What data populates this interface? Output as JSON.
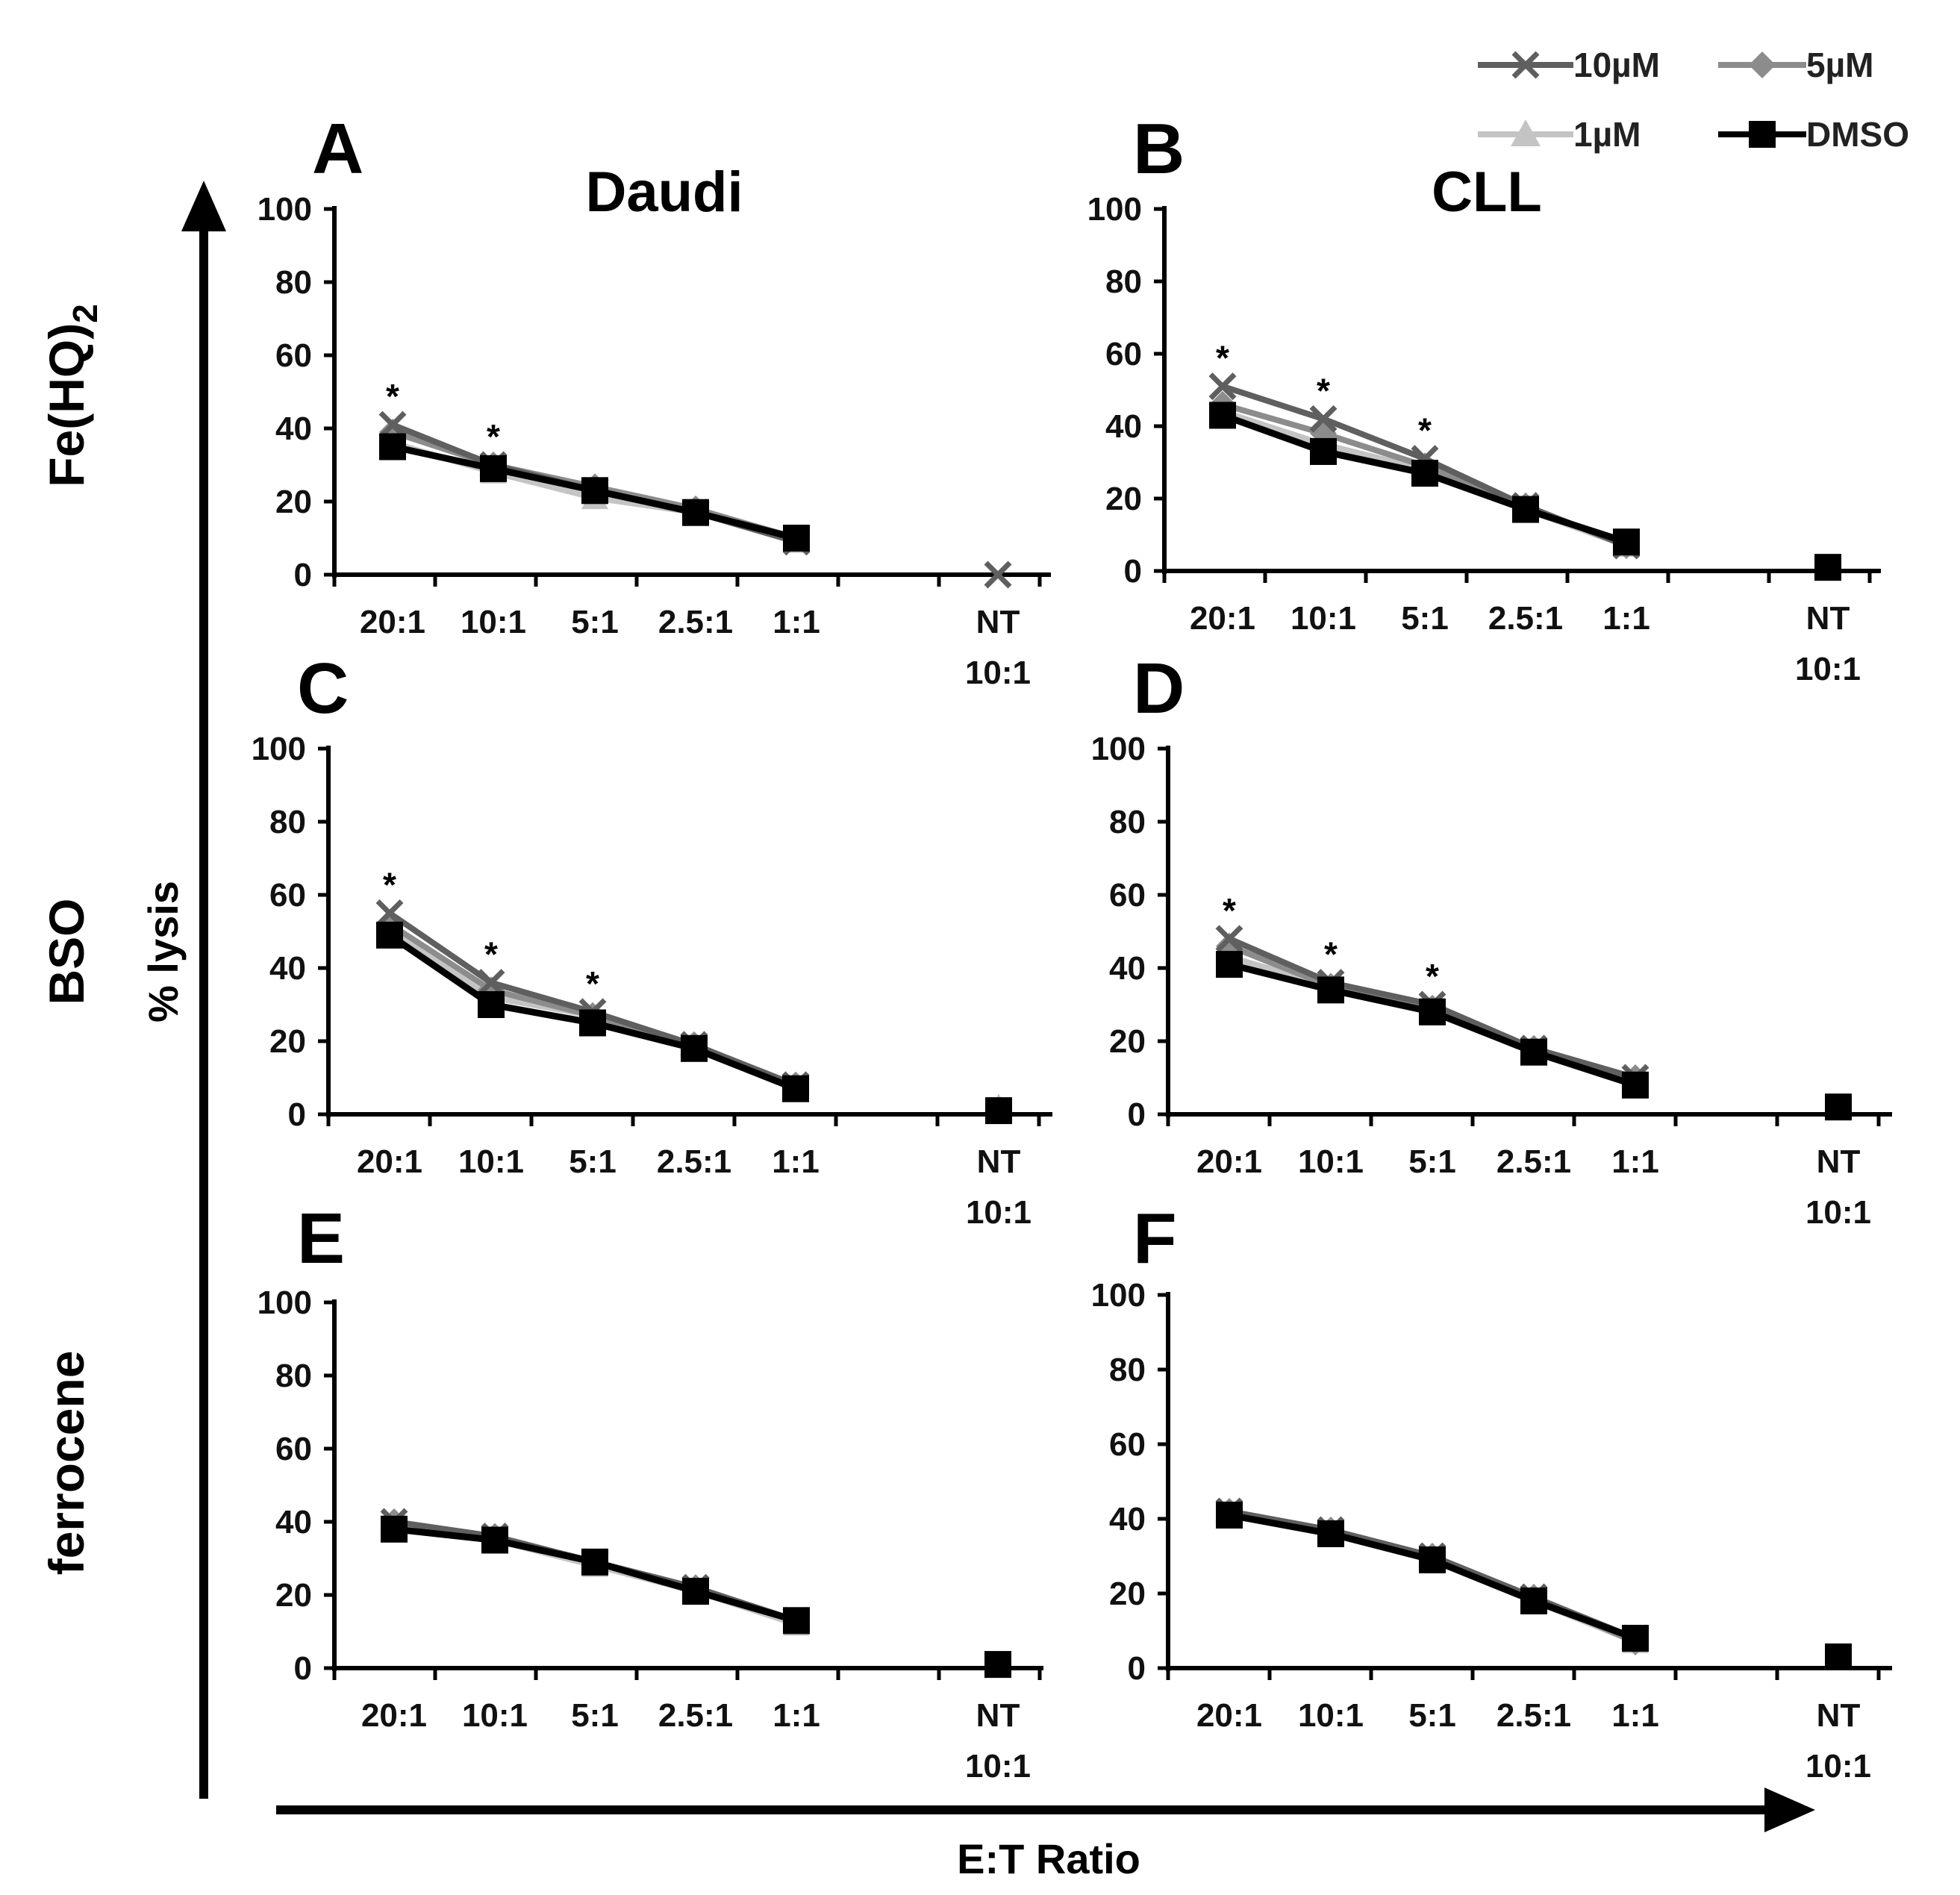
{
  "figure": {
    "y_axis_label": "% lysis",
    "x_axis_label": "E:T Ratio",
    "column_titles": [
      "Daudi",
      "CLL"
    ],
    "row_titles": [
      "Fe(HQ)",
      "BSO",
      "ferrocene"
    ],
    "row_title_subscript": "2"
  },
  "legend": [
    {
      "name": "10µM",
      "color": "#5f5f5f",
      "marker": "x-icon"
    },
    {
      "name": "5µM",
      "color": "#8c8c8c",
      "marker": "diamond-icon"
    },
    {
      "name": "1µM",
      "color": "#c4c4c4",
      "marker": "triangle-icon"
    },
    {
      "name": "DMSO",
      "color": "#000000",
      "marker": "square-icon"
    }
  ],
  "chart_data": [
    {
      "panel": "A",
      "type": "line",
      "cell_line": "Daudi",
      "treatment": "Fe(HQ)2",
      "categories": [
        "20:1",
        "10:1",
        "5:1",
        "2.5:1",
        "1:1",
        "NT 10:1"
      ],
      "ylim": [
        0,
        100
      ],
      "yticks": [
        0,
        20,
        40,
        60,
        80,
        100
      ],
      "series": [
        {
          "name": "10µM",
          "values": [
            41,
            30,
            23,
            17,
            9,
            0
          ]
        },
        {
          "name": "5µM",
          "values": [
            39,
            30,
            24,
            18,
            10,
            null
          ]
        },
        {
          "name": "1µM",
          "values": [
            36,
            28,
            21,
            17,
            9,
            null
          ]
        },
        {
          "name": "DMSO",
          "values": [
            35,
            29,
            23,
            17,
            10,
            null
          ]
        }
      ],
      "significance": [
        "*",
        "*",
        "",
        "",
        "",
        ""
      ]
    },
    {
      "panel": "B",
      "type": "line",
      "cell_line": "CLL",
      "treatment": "Fe(HQ)2",
      "categories": [
        "20:1",
        "10:1",
        "5:1",
        "2.5:1",
        "1:1",
        "NT 10:1"
      ],
      "ylim": [
        0,
        100
      ],
      "yticks": [
        0,
        20,
        40,
        60,
        80,
        100
      ],
      "series": [
        {
          "name": "10µM",
          "values": [
            51,
            42,
            31,
            18,
            7,
            null
          ]
        },
        {
          "name": "5µM",
          "values": [
            46,
            38,
            29,
            18,
            7,
            null
          ]
        },
        {
          "name": "1µM",
          "values": [
            44,
            35,
            28,
            17,
            7,
            null
          ]
        },
        {
          "name": "DMSO",
          "values": [
            43,
            33,
            27,
            17,
            8,
            1
          ]
        }
      ],
      "significance": [
        "*",
        "*",
        "*",
        "",
        "",
        ""
      ]
    },
    {
      "panel": "C",
      "type": "line",
      "cell_line": "Daudi",
      "treatment": "BSO",
      "categories": [
        "20:1",
        "10:1",
        "5:1",
        "2.5:1",
        "1:1",
        "NT 10:1"
      ],
      "ylim": [
        0,
        100
      ],
      "yticks": [
        0,
        20,
        40,
        60,
        80,
        100
      ],
      "series": [
        {
          "name": "10µM",
          "values": [
            55,
            36,
            28,
            19,
            8,
            null
          ]
        },
        {
          "name": "5µM",
          "values": [
            52,
            34,
            27,
            19,
            8,
            null
          ]
        },
        {
          "name": "1µM",
          "values": [
            50,
            32,
            27,
            18,
            8,
            2
          ]
        },
        {
          "name": "DMSO",
          "values": [
            49,
            30,
            25,
            18,
            7,
            1
          ]
        }
      ],
      "significance": [
        "*",
        "*",
        "*",
        "",
        "",
        ""
      ]
    },
    {
      "panel": "D",
      "type": "line",
      "cell_line": "CLL",
      "treatment": "BSO",
      "categories": [
        "20:1",
        "10:1",
        "5:1",
        "2.5:1",
        "1:1",
        "NT 10:1"
      ],
      "ylim": [
        0,
        100
      ],
      "yticks": [
        0,
        20,
        40,
        60,
        80,
        100
      ],
      "series": [
        {
          "name": "10µM",
          "values": [
            48,
            36,
            30,
            18,
            10,
            null
          ]
        },
        {
          "name": "5µM",
          "values": [
            46,
            35,
            29,
            18,
            10,
            null
          ]
        },
        {
          "name": "1µM",
          "values": [
            43,
            35,
            29,
            18,
            10,
            2
          ]
        },
        {
          "name": "DMSO",
          "values": [
            41,
            34,
            28,
            17,
            8,
            2
          ]
        }
      ],
      "significance": [
        "*",
        "*",
        "*",
        "",
        "",
        ""
      ]
    },
    {
      "panel": "E",
      "type": "line",
      "cell_line": "Daudi",
      "treatment": "ferrocene",
      "categories": [
        "20:1",
        "10:1",
        "5:1",
        "2.5:1",
        "1:1",
        "NT 10:1"
      ],
      "ylim": [
        0,
        100
      ],
      "yticks": [
        0,
        20,
        40,
        60,
        80,
        100
      ],
      "series": [
        {
          "name": "10µM",
          "values": [
            40,
            36,
            29,
            22,
            13,
            null
          ]
        },
        {
          "name": "5µM",
          "values": [
            40,
            36,
            29,
            22,
            13,
            null
          ]
        },
        {
          "name": "1µM",
          "values": [
            39,
            35,
            28,
            21,
            12,
            null
          ]
        },
        {
          "name": "DMSO",
          "values": [
            38,
            35,
            29,
            21,
            13,
            1
          ]
        }
      ],
      "significance": [
        "",
        "",
        "",
        "",
        "",
        ""
      ]
    },
    {
      "panel": "F",
      "type": "line",
      "cell_line": "CLL",
      "treatment": "ferrocene",
      "categories": [
        "20:1",
        "10:1",
        "5:1",
        "2.5:1",
        "1:1",
        "NT 10:1"
      ],
      "ylim": [
        0,
        100
      ],
      "yticks": [
        0,
        20,
        40,
        60,
        80,
        100
      ],
      "series": [
        {
          "name": "10µM",
          "values": [
            42,
            37,
            30,
            19,
            8,
            null
          ]
        },
        {
          "name": "5µM",
          "values": [
            42,
            37,
            30,
            19,
            7,
            null
          ]
        },
        {
          "name": "1µM",
          "values": [
            41,
            37,
            29,
            18,
            7,
            null
          ]
        },
        {
          "name": "DMSO",
          "values": [
            41,
            36,
            29,
            18,
            8,
            3
          ]
        }
      ],
      "significance": [
        "",
        "",
        "",
        "",
        "",
        ""
      ]
    }
  ]
}
